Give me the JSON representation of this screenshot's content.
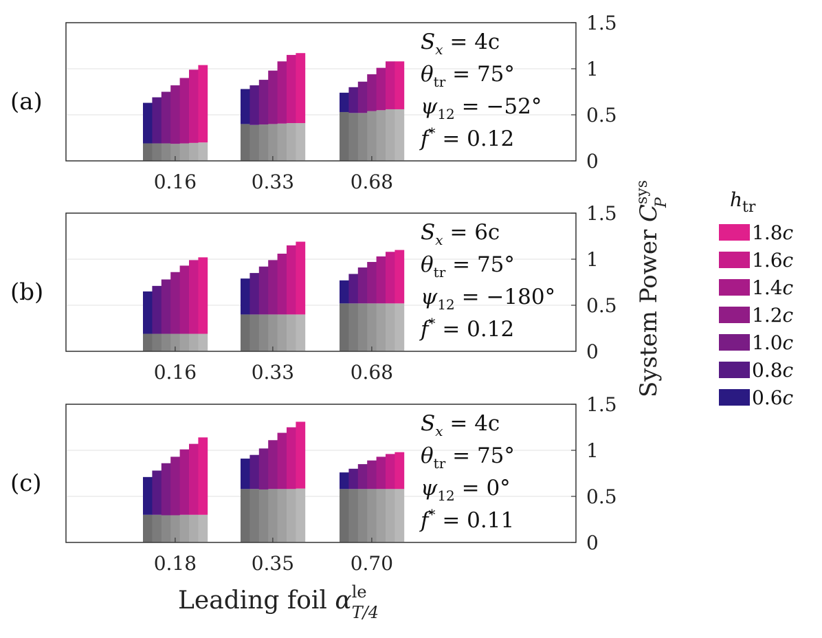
{
  "chart_data": {
    "type": "stacked-bar",
    "ylabel": "System Power C_P^sys",
    "ylabel_main": "System Power ",
    "ylabel_sym": "C",
    "ylabel_sup": "sys",
    "ylabel_sub": "P",
    "xlabel_main": "Leading foil ",
    "xlabel_sym": "α",
    "xlabel_sup": "le",
    "xlabel_sub": "T/4",
    "yticks": [
      "0",
      "0.5",
      "1",
      "1.5"
    ],
    "ylim": [
      0,
      1.5
    ],
    "legend": {
      "title_sym": "h",
      "title_sub": "tr",
      "entries": [
        {
          "label": "1.8c",
          "color": "#e0208c"
        },
        {
          "label": "1.6c",
          "color": "#c81c8a"
        },
        {
          "label": "1.4c",
          "color": "#a81b88"
        },
        {
          "label": "1.2c",
          "color": "#911c86"
        },
        {
          "label": "1.0c",
          "color": "#7a1c85"
        },
        {
          "label": "0.8c",
          "color": "#571a84"
        },
        {
          "label": "0.6c",
          "color": "#2a1a82"
        }
      ]
    },
    "series_order": [
      "0.6c",
      "0.8c",
      "1.0c",
      "1.2c",
      "1.4c",
      "1.6c",
      "1.8c"
    ],
    "series_colors": [
      "#2a1a82",
      "#571a84",
      "#7a1c85",
      "#911c86",
      "#a81b88",
      "#c81c8a",
      "#e0208c"
    ],
    "gray_colors": [
      "#6e6e6e",
      "#7b7b7b",
      "#888888",
      "#959595",
      "#a1a1a1",
      "#adadad",
      "#b8b8b8"
    ],
    "panels": [
      {
        "label": "(a)",
        "annotations": {
          "Sx": "4c",
          "theta": "75°",
          "psi": "−52°",
          "f": "0.12"
        },
        "groups": [
          {
            "category": "0.16",
            "base": [
              0.19,
              0.19,
              0.19,
              0.185,
              0.19,
              0.195,
              0.2
            ],
            "total": [
              0.63,
              0.69,
              0.75,
              0.82,
              0.9,
              0.99,
              1.04
            ]
          },
          {
            "category": "0.33",
            "base": [
              0.4,
              0.39,
              0.395,
              0.4,
              0.405,
              0.41,
              0.41
            ],
            "total": [
              0.78,
              0.82,
              0.88,
              0.98,
              1.08,
              1.15,
              1.17
            ]
          },
          {
            "category": "0.68",
            "base": [
              0.53,
              0.52,
              0.52,
              0.54,
              0.55,
              0.56,
              0.56
            ],
            "total": [
              0.74,
              0.8,
              0.86,
              0.94,
              1.01,
              1.08,
              1.08
            ]
          }
        ]
      },
      {
        "label": "(b)",
        "annotations": {
          "Sx": "6c",
          "theta": "75°",
          "psi": "−180°",
          "f": "0.12"
        },
        "groups": [
          {
            "category": "0.16",
            "base": [
              0.19,
              0.19,
              0.19,
              0.19,
              0.19,
              0.19,
              0.19
            ],
            "total": [
              0.65,
              0.71,
              0.78,
              0.86,
              0.93,
              0.99,
              1.02
            ]
          },
          {
            "category": "0.33",
            "base": [
              0.4,
              0.4,
              0.4,
              0.4,
              0.4,
              0.4,
              0.4
            ],
            "total": [
              0.79,
              0.85,
              0.92,
              0.99,
              1.06,
              1.15,
              1.19
            ]
          },
          {
            "category": "0.68",
            "base": [
              0.52,
              0.52,
              0.52,
              0.52,
              0.52,
              0.52,
              0.52
            ],
            "total": [
              0.77,
              0.84,
              0.91,
              0.97,
              1.03,
              1.08,
              1.1
            ]
          }
        ]
      },
      {
        "label": "(c)",
        "annotations": {
          "Sx": "4c",
          "theta": "75°",
          "psi": "0°",
          "f": "0.11"
        },
        "groups": [
          {
            "category": "0.18",
            "base": [
              0.3,
              0.3,
              0.295,
              0.295,
              0.3,
              0.3,
              0.3
            ],
            "total": [
              0.71,
              0.78,
              0.86,
              0.93,
              1.01,
              1.07,
              1.14
            ]
          },
          {
            "category": "0.35",
            "base": [
              0.58,
              0.58,
              0.575,
              0.58,
              0.58,
              0.58,
              0.585
            ],
            "total": [
              0.91,
              0.95,
              1.02,
              1.11,
              1.19,
              1.25,
              1.31
            ]
          },
          {
            "category": "0.70",
            "base": [
              0.58,
              0.58,
              0.58,
              0.58,
              0.58,
              0.58,
              0.58
            ],
            "total": [
              0.76,
              0.8,
              0.85,
              0.89,
              0.93,
              0.96,
              0.98
            ]
          }
        ]
      }
    ]
  }
}
